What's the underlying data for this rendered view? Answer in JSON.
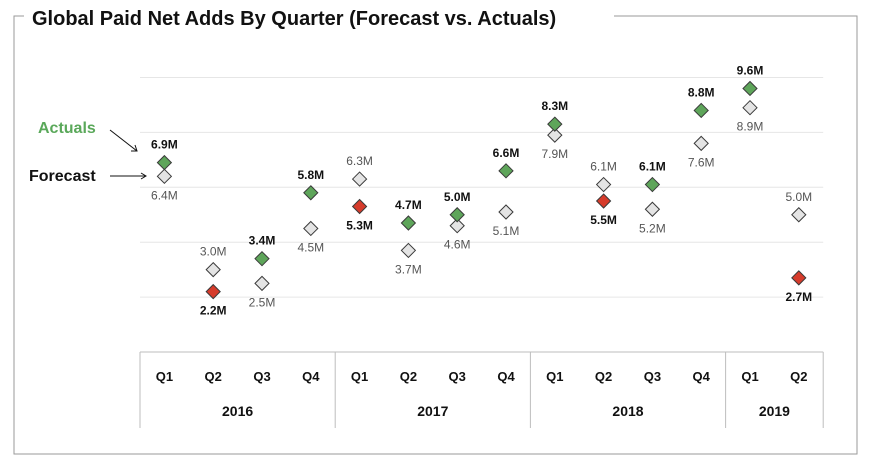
{
  "chart_data": {
    "type": "scatter",
    "title": "Global Paid Net Adds By Quarter (Forecast vs. Actuals)",
    "categories": [
      "Q1",
      "Q2",
      "Q3",
      "Q4",
      "Q1",
      "Q2",
      "Q3",
      "Q4",
      "Q1",
      "Q2",
      "Q3",
      "Q4",
      "Q1",
      "Q2"
    ],
    "groups": [
      {
        "label": "2016",
        "quarters": 4
      },
      {
        "label": "2017",
        "quarters": 4
      },
      {
        "label": "2018",
        "quarters": 4
      },
      {
        "label": "2019",
        "quarters": 2
      }
    ],
    "ylim": [
      0,
      10.7
    ],
    "grid": true,
    "series": [
      {
        "name": "Forecast",
        "values": [
          6.4,
          3.0,
          2.5,
          4.5,
          6.3,
          3.7,
          4.6,
          5.1,
          7.9,
          6.1,
          5.2,
          7.6,
          8.9,
          5.0
        ],
        "labels": [
          "6.4M",
          "3.0M",
          "2.5M",
          "4.5M",
          "6.3M",
          "3.7M",
          "4.6M",
          "5.1M",
          "7.9M",
          "6.1M",
          "5.2M",
          "7.6M",
          "8.9M",
          "5.0M"
        ]
      },
      {
        "name": "Actuals",
        "values": [
          6.9,
          2.2,
          3.4,
          5.8,
          5.3,
          4.7,
          5.0,
          6.6,
          8.3,
          5.5,
          6.1,
          8.8,
          9.6,
          2.7
        ],
        "labels": [
          "6.9M",
          "2.2M",
          "3.4M",
          "5.8M",
          "5.3M",
          "4.7M",
          "5.0M",
          "6.6M",
          "8.3M",
          "5.5M",
          "6.1M",
          "8.8M",
          "9.6M",
          "2.7M"
        ]
      }
    ],
    "legend": {
      "actuals_label": "Actuals",
      "forecast_label": "Forecast",
      "placement": "left"
    },
    "colors": {
      "beat": "#5ea55a",
      "miss": "#d63b2b",
      "forecast": "#e4e4e4",
      "actuals_legend": "#5aa85a",
      "outline": "#3a3a3a"
    }
  }
}
